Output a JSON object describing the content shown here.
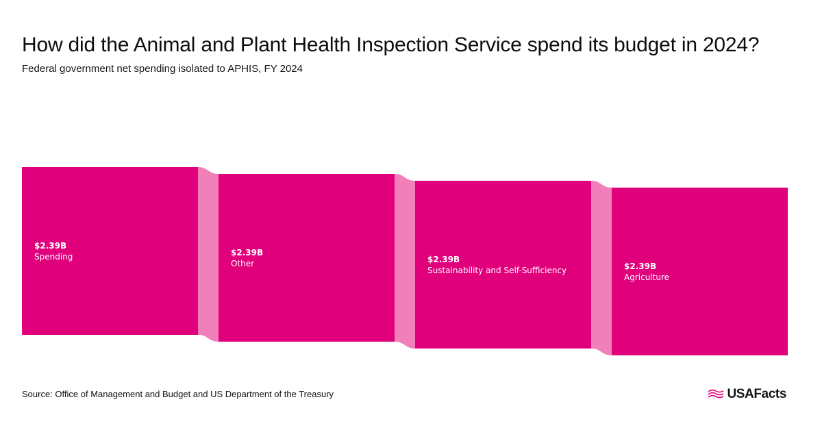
{
  "header": {
    "title": "How did the Animal and Plant Health Inspection Service spend its budget in 2024?",
    "subtitle": "Federal government net spending isolated to APHIS, FY 2024"
  },
  "footer": {
    "source": "Source: Office of Management and Budget and US Department of the Treasury",
    "brand": "USAFacts",
    "brand_icon": "usafacts-flag-icon"
  },
  "colors": {
    "node": "#e0007c",
    "link": "#f07fba",
    "text": "#111111"
  },
  "chart_data": {
    "type": "sankey",
    "unit": "USD billions",
    "nodes": [
      {
        "id": "spending",
        "name": "Spending",
        "value_label": "$2.39B",
        "value": 2.39
      },
      {
        "id": "other",
        "name": "Other",
        "value_label": "$2.39B",
        "value": 2.39
      },
      {
        "id": "sustainability",
        "name": "Sustainability and Self-Sufficiency",
        "value_label": "$2.39B",
        "value": 2.39
      },
      {
        "id": "agriculture",
        "name": "Agriculture",
        "value_label": "$2.39B",
        "value": 2.39
      }
    ],
    "links": [
      {
        "source": "spending",
        "target": "other",
        "value": 2.39
      },
      {
        "source": "other",
        "target": "sustainability",
        "value": 2.39
      },
      {
        "source": "sustainability",
        "target": "agriculture",
        "value": 2.39
      }
    ]
  }
}
